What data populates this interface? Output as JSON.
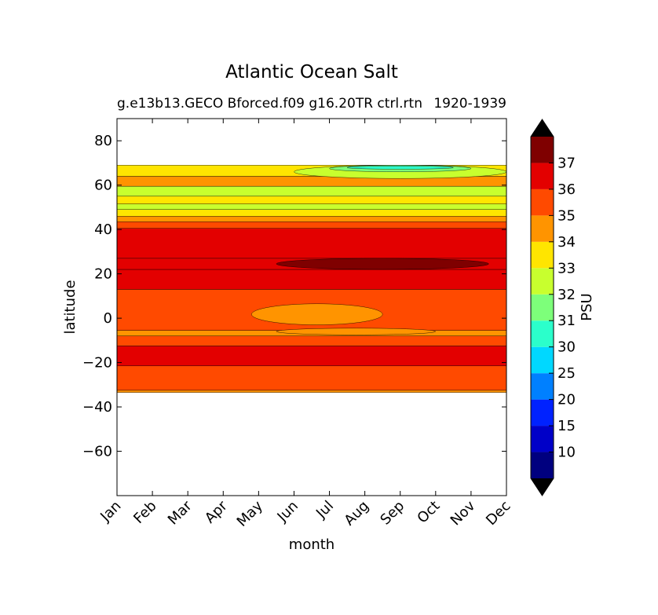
{
  "chart_data": {
    "type": "contourf",
    "title": "Atlantic Ocean Salt",
    "subtitle_left": "g.e13b13.GECO Bforced.f09 g16.20TR ctrl.rtn",
    "subtitle_right": "1920-1939",
    "xlabel": "month",
    "ylabel": "latitude",
    "x_categories": [
      "Jan",
      "Feb",
      "Mar",
      "Apr",
      "May",
      "Jun",
      "Jul",
      "Aug",
      "Sep",
      "Oct",
      "Nov",
      "Dec"
    ],
    "y_ticks": [
      80,
      60,
      40,
      20,
      0,
      -20,
      -40,
      -60
    ],
    "ylim": [
      -80,
      90
    ],
    "colorbar": {
      "label": "PSU",
      "tick_labels": [
        "10",
        "15",
        "20",
        "25",
        "30",
        "31",
        "32",
        "33",
        "34",
        "35",
        "36",
        "37"
      ],
      "levels": [
        5,
        10,
        15,
        20,
        25,
        30,
        31,
        32,
        33,
        34,
        35,
        36,
        37,
        38
      ],
      "colors": [
        "#00007f",
        "#0000c8",
        "#0022ff",
        "#0080ff",
        "#00d8ff",
        "#2bffcb",
        "#7dff7a",
        "#c8ff2e",
        "#ffe500",
        "#ff9400",
        "#ff4a00",
        "#e30000",
        "#7f0000"
      ],
      "under_color": "#000000",
      "over_color": "#000000"
    },
    "bands": [
      {
        "lat_from": -33.5,
        "lat_to": -32.5,
        "value": 34.5
      },
      {
        "lat_from": -32.5,
        "lat_to": -21.5,
        "value": 35.5
      },
      {
        "lat_from": -21.5,
        "lat_to": -12.5,
        "value": 36.3
      },
      {
        "lat_from": -12.5,
        "lat_to": -8.0,
        "value": 35.5
      },
      {
        "lat_from": -8.0,
        "lat_to": -5.5,
        "value": 34.8
      },
      {
        "lat_from": -5.5,
        "lat_to": 13.0,
        "value": 35.5
      },
      {
        "lat_from": 13.0,
        "lat_to": 22.0,
        "value": 36.3
      },
      {
        "lat_from": 22.0,
        "lat_to": 27.0,
        "value": 36.5
      },
      {
        "lat_from": 27.0,
        "lat_to": 40.5,
        "value": 36.3
      },
      {
        "lat_from": 40.5,
        "lat_to": 43.5,
        "value": 35.5
      },
      {
        "lat_from": 43.5,
        "lat_to": 46.0,
        "value": 34.5
      },
      {
        "lat_from": 46.0,
        "lat_to": 49.0,
        "value": 33.5
      },
      {
        "lat_from": 49.0,
        "lat_to": 51.5,
        "value": 32.5
      },
      {
        "lat_from": 51.5,
        "lat_to": 55.0,
        "value": 33.5
      },
      {
        "lat_from": 55.0,
        "lat_to": 59.5,
        "value": 32.5
      },
      {
        "lat_from": 59.5,
        "lat_to": 64.0,
        "value": 34.5
      },
      {
        "lat_from": 64.0,
        "lat_to": 69.0,
        "value": 33.5
      }
    ],
    "patches": [
      {
        "month_from": 4.5,
        "month_to": 10.5,
        "lat_from": 22.0,
        "lat_to": 27.0,
        "value": 37.2
      },
      {
        "month_from": 3.8,
        "month_to": 7.5,
        "lat_from": -3.0,
        "lat_to": 6.5,
        "value": 34.6
      },
      {
        "month_from": 4.5,
        "month_to": 9.0,
        "lat_from": -7.5,
        "lat_to": -4.5,
        "value": 34.6
      },
      {
        "month_from": 5.0,
        "month_to": 11.0,
        "lat_from": 63.0,
        "lat_to": 69.0,
        "value": 32.5
      },
      {
        "month_from": 6.0,
        "month_to": 10.0,
        "lat_from": 66.0,
        "lat_to": 69.0,
        "value": 31.5
      },
      {
        "month_from": 6.5,
        "month_to": 9.5,
        "lat_from": 67.2,
        "lat_to": 68.6,
        "value": 30.5
      }
    ]
  }
}
